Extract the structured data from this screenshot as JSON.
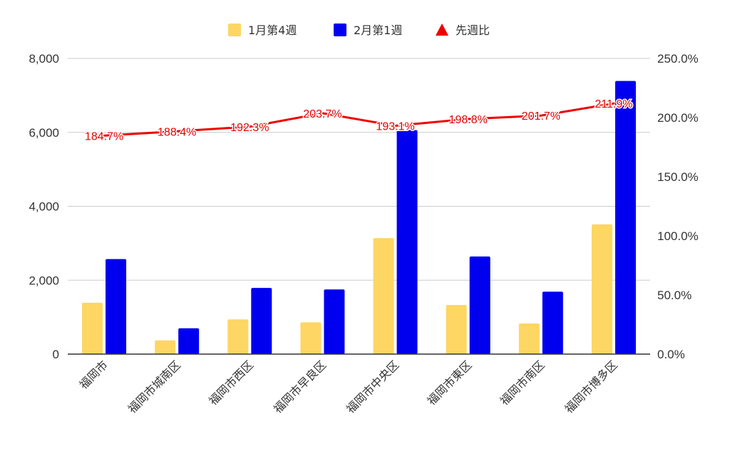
{
  "chart_data": {
    "type": "bar",
    "categories": [
      "福岡市",
      "福岡市城南区",
      "福岡市西区",
      "福岡市早良区",
      "福岡市中央区",
      "福岡市東区",
      "福岡市南区",
      "福岡市博多区"
    ],
    "series": [
      {
        "name": "1月第4週",
        "type": "bar",
        "axis": "left",
        "color": "#fdd663",
        "values": [
          1390,
          370,
          940,
          860,
          3140,
          1330,
          830,
          3510
        ]
      },
      {
        "name": "2月第1週",
        "type": "bar",
        "axis": "left",
        "color": "#0000ee",
        "values": [
          2570,
          700,
          1790,
          1750,
          6060,
          2640,
          1690,
          7390
        ]
      },
      {
        "name": "先週比",
        "type": "line",
        "axis": "right",
        "color": "#ee0000",
        "values": [
          184.7,
          188.4,
          192.3,
          203.7,
          193.1,
          198.8,
          201.7,
          211.9
        ],
        "labels": [
          "184.7%",
          "188.4%",
          "192.3%",
          "203.7%",
          "193.1%",
          "198.8%",
          "201.7%",
          "211.9%"
        ]
      }
    ],
    "y_left": {
      "min": 0,
      "max": 8000,
      "ticks": [
        0,
        2000,
        4000,
        6000,
        8000
      ],
      "tick_labels": [
        "0",
        "2,000",
        "4,000",
        "6,000",
        "8,000"
      ]
    },
    "y_right": {
      "min": 0,
      "max": 250,
      "ticks": [
        0,
        50,
        100,
        150,
        200,
        250
      ],
      "tick_labels": [
        "0.0%",
        "50.0%",
        "100.0%",
        "150.0%",
        "200.0%",
        "250.0%"
      ]
    },
    "grid": true,
    "legend_position": "top-center",
    "title": "",
    "xlabel": "",
    "ylabel": ""
  }
}
